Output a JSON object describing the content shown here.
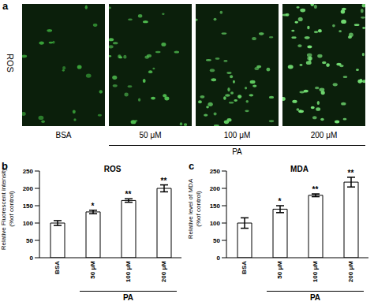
{
  "images_panel": {
    "panel_label": "a",
    "row_label": "ROS",
    "captions": [
      "BSA",
      "50 μM",
      "100 μM",
      "200 μM"
    ],
    "group": {
      "label": "PA",
      "captions": [
        "50 μM",
        "100 μM",
        "200 μM"
      ]
    }
  },
  "chart_data": [
    {
      "type": "bar",
      "panel_label": "b",
      "title": "ROS",
      "y_label": "Relative Fluorescent intensity\n(%of control)",
      "categories": [
        "BSA",
        "50 μM",
        "100 μM",
        "200 μM"
      ],
      "values": [
        100,
        132,
        165,
        200
      ],
      "errors": [
        7,
        5,
        5,
        10
      ],
      "significance": [
        null,
        "*",
        "**",
        "**"
      ],
      "group": {
        "label": "PA",
        "categories": [
          "50 μM",
          "100 μM",
          "200 μM"
        ]
      },
      "color": "#ffffff",
      "ylim": [
        0,
        250
      ],
      "yticks": [
        0,
        50,
        100,
        150,
        200,
        250
      ]
    },
    {
      "type": "bar",
      "panel_label": "c",
      "title": "MDA",
      "y_label": "Relative level of MDA\n(%of control)",
      "categories": [
        "BSA",
        "50 μM",
        "100 μM",
        "200 μM"
      ],
      "values": [
        100,
        140,
        180,
        218
      ],
      "errors": [
        15,
        10,
        4,
        14
      ],
      "significance": [
        null,
        "*",
        "**",
        "**"
      ],
      "group": {
        "label": "PA",
        "categories": [
          "50 μM",
          "100 μM",
          "200 μM"
        ]
      },
      "color": "#ffffff",
      "ylim": [
        0,
        250
      ],
      "yticks": [
        0,
        50,
        100,
        150,
        200,
        250
      ]
    }
  ]
}
